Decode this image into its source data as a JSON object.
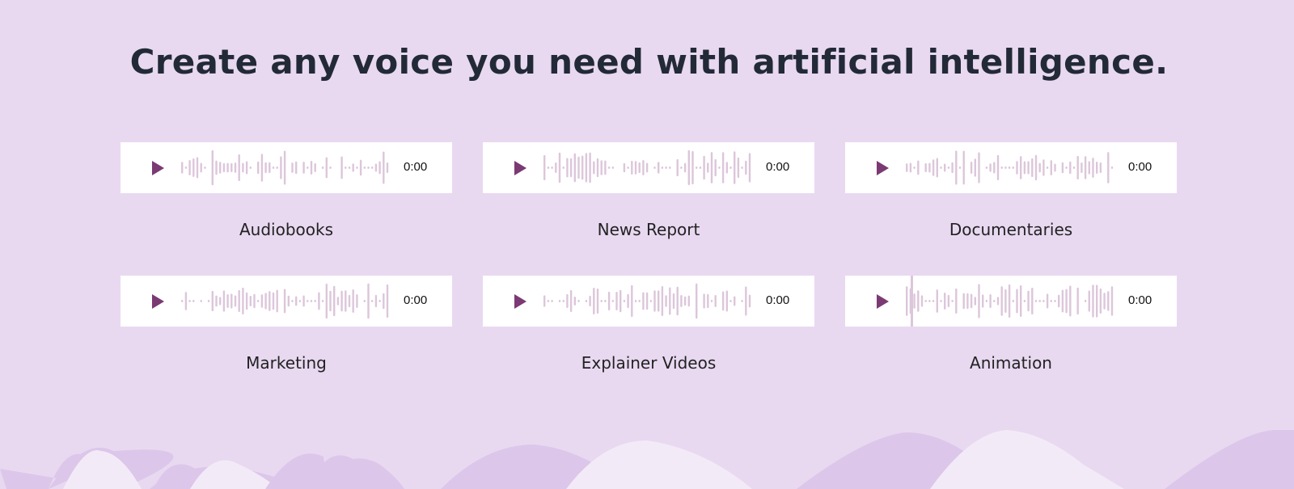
{
  "title": "Create any voice you need with artificial intelligence.",
  "colors": {
    "background": "#e8d9f1",
    "play": "#7b3a73",
    "wave": "#dcc6da",
    "hill_dark": "#dcc6ea",
    "hill_light": "#f3eaf7"
  },
  "players": [
    {
      "label": "Audiobooks",
      "time": "0:00",
      "icon": "play-icon"
    },
    {
      "label": "News Report",
      "time": "0:00",
      "icon": "play-icon"
    },
    {
      "label": "Documentaries",
      "time": "0:00",
      "icon": "play-icon"
    },
    {
      "label": "Marketing",
      "time": "0:00",
      "icon": "play-icon"
    },
    {
      "label": "Explainer Videos",
      "time": "0:00",
      "icon": "play-icon"
    },
    {
      "label": "Animation",
      "time": "0:00",
      "icon": "play-icon"
    }
  ]
}
